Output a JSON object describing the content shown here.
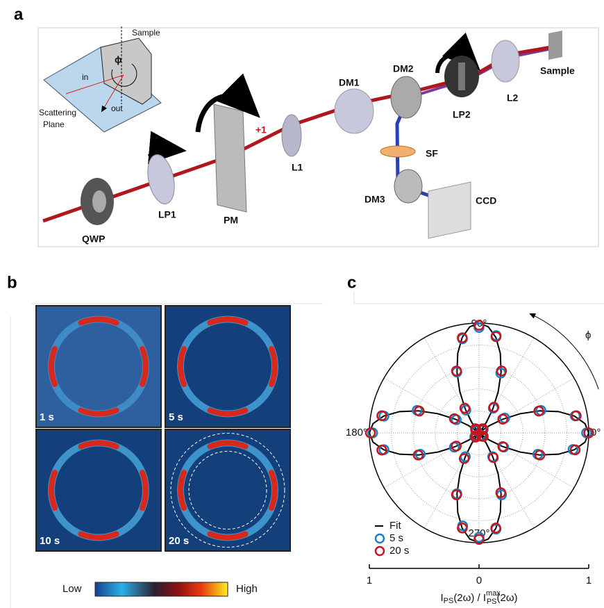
{
  "panel_a": {
    "label": "a",
    "components": {
      "qwp": "QWP",
      "lp1": "LP1",
      "pm": "PM",
      "l1": "L1",
      "dm1": "DM1",
      "dm2": "DM2",
      "lp2": "LP2",
      "l2": "L2",
      "sample": "Sample",
      "sf": "SF",
      "dm3": "DM3",
      "ccd": "CCD"
    },
    "diffraction_order": "+1",
    "inset": {
      "sample": "Sample",
      "angle": "ϕ",
      "incident": "in",
      "outgoing": "out",
      "plane": [
        "Scattering",
        "Plane"
      ]
    }
  },
  "panel_b": {
    "label": "b",
    "frames": [
      "1 s",
      "5 s",
      "10 s",
      "20 s"
    ],
    "colorbar": {
      "low": "Low",
      "high": "High"
    }
  },
  "panel_c": {
    "label": "c",
    "chart_data": {
      "type": "polar",
      "angle_symbol": "ϕ",
      "theta_ticks": [
        {
          "value": 0,
          "label": "0°"
        },
        {
          "value": 90,
          "label": "90°"
        },
        {
          "value": 180,
          "label": "180°"
        },
        {
          "value": 270,
          "label": "270°"
        }
      ],
      "theta_grid": [
        0,
        30,
        60,
        90,
        120,
        150,
        180,
        210,
        240,
        270,
        300,
        330
      ],
      "r_grid": [
        0.2,
        0.4,
        0.6,
        0.8,
        1
      ],
      "xlim": [
        -1,
        1
      ],
      "xticks": [
        {
          "value": -1,
          "label": "1"
        },
        0,
        1
      ],
      "xlabel": {
        "a": "I",
        "a_sub": "PS",
        "b": "(2ω) / I",
        "b_sup": "max",
        "b_sub": "PS",
        "c": "(2ω)"
      },
      "theta": [
        0,
        10,
        20,
        30,
        40,
        50,
        60,
        70,
        80,
        90,
        100,
        110,
        120,
        130,
        140,
        150,
        160,
        170,
        180,
        190,
        200,
        210,
        220,
        230,
        240,
        250,
        260,
        270,
        280,
        290,
        300,
        310,
        320,
        330,
        340,
        350
      ],
      "fit": {
        "name": "Fit",
        "color": "#000000",
        "theta": [
          0,
          5,
          10,
          15,
          20,
          25,
          30,
          35,
          40,
          45,
          50,
          55,
          60,
          65,
          70,
          75,
          80,
          85,
          90,
          95,
          100,
          105,
          110,
          115,
          120,
          125,
          130,
          135,
          140,
          145,
          150,
          155,
          160,
          165,
          170,
          175,
          180,
          185,
          190,
          195,
          200,
          205,
          210,
          215,
          220,
          225,
          230,
          235,
          240,
          245,
          250,
          255,
          260,
          265,
          270,
          275,
          280,
          285,
          290,
          295,
          300,
          305,
          310,
          315,
          320,
          325,
          330,
          335,
          340,
          345,
          350,
          355
        ],
        "values": [
          1,
          0.97,
          0.883,
          0.75,
          0.587,
          0.413,
          0.25,
          0.117,
          0.03,
          0,
          0.03,
          0.117,
          0.25,
          0.413,
          0.587,
          0.75,
          0.883,
          0.97,
          1,
          0.97,
          0.883,
          0.75,
          0.587,
          0.413,
          0.25,
          0.117,
          0.03,
          0,
          0.03,
          0.117,
          0.25,
          0.413,
          0.587,
          0.75,
          0.883,
          0.97,
          1,
          0.97,
          0.883,
          0.75,
          0.587,
          0.413,
          0.25,
          0.117,
          0.03,
          0,
          0.03,
          0.117,
          0.25,
          0.413,
          0.587,
          0.75,
          0.883,
          0.97,
          1,
          0.97,
          0.883,
          0.75,
          0.587,
          0.413,
          0.25,
          0.117,
          0.03,
          0,
          0.03,
          0.117,
          0.25,
          0.413,
          0.587,
          0.75,
          0.883,
          0.97
        ]
      },
      "series": [
        {
          "name": "5 s",
          "color": "#1a80c6",
          "values": [
            0.98,
            0.89,
            0.6,
            0.27,
            0.05,
            0.04,
            0.26,
            0.58,
            0.9,
            0.96,
            0.87,
            0.59,
            0.24,
            0.04,
            0.03,
            0.24,
            0.6,
            0.88,
            0.97,
            0.88,
            0.57,
            0.26,
            0.05,
            0.04,
            0.25,
            0.59,
            0.86,
            0.95,
            0.89,
            0.6,
            0.25,
            0.03,
            0.04,
            0.26,
            0.57,
            0.87
          ]
        },
        {
          "name": "20 s",
          "color": "#c4161c",
          "values": [
            1,
            0.9,
            0.58,
            0.25,
            0.04,
            0.05,
            0.27,
            0.6,
            0.89,
            0.98,
            0.88,
            0.6,
            0.26,
            0.05,
            0.04,
            0.26,
            0.58,
            0.9,
            0.99,
            0.9,
            0.59,
            0.24,
            0.03,
            0.05,
            0.27,
            0.6,
            0.88,
            0.97,
            0.88,
            0.58,
            0.26,
            0.04,
            0.05,
            0.25,
            0.59,
            0.89
          ]
        }
      ]
    }
  }
}
